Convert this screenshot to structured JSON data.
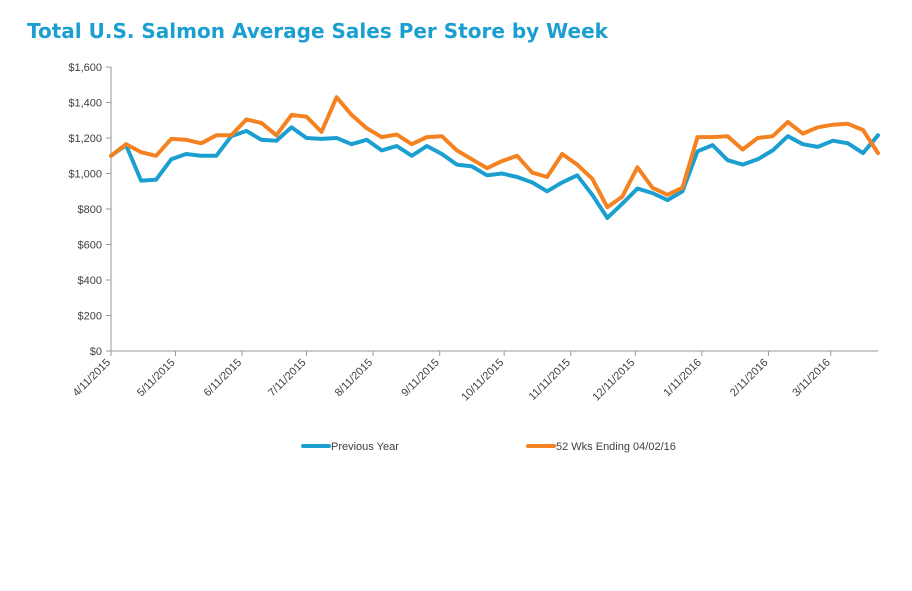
{
  "chart_data": {
    "type": "line",
    "title": "Total U.S. Salmon Average Sales Per Store by Week",
    "xlabel": "",
    "ylabel": "",
    "ylim": [
      0,
      1600
    ],
    "y_ticks": [
      0,
      200,
      400,
      600,
      800,
      1000,
      1200,
      1400,
      1600
    ],
    "y_tick_labels": [
      "$0",
      "$200",
      "$400",
      "$600",
      "$800",
      "$1,000",
      "$1,200",
      "$1,400",
      "$1,600"
    ],
    "x_start": "4/11/2015",
    "x_tick_labels": [
      "4/11/2015",
      "5/11/2015",
      "6/11/2015",
      "7/11/2015",
      "8/11/2015",
      "9/11/2015",
      "10/11/2015",
      "11/11/2015",
      "12/11/2015",
      "1/11/2016",
      "2/11/2016",
      "3/11/2016"
    ],
    "x_tick_dates": [
      "2015-04-11",
      "2015-05-11",
      "2015-06-11",
      "2015-07-11",
      "2015-08-11",
      "2015-09-11",
      "2015-10-11",
      "2015-11-11",
      "2015-12-11",
      "2016-01-11",
      "2016-02-11",
      "2016-03-11"
    ],
    "x_dates": [
      "2015-04-11",
      "2015-04-18",
      "2015-04-25",
      "2015-05-02",
      "2015-05-09",
      "2015-05-16",
      "2015-05-23",
      "2015-05-30",
      "2015-06-06",
      "2015-06-13",
      "2015-06-20",
      "2015-06-27",
      "2015-07-04",
      "2015-07-11",
      "2015-07-18",
      "2015-07-25",
      "2015-08-01",
      "2015-08-08",
      "2015-08-15",
      "2015-08-22",
      "2015-08-29",
      "2015-09-05",
      "2015-09-12",
      "2015-09-19",
      "2015-09-26",
      "2015-10-03",
      "2015-10-10",
      "2015-10-17",
      "2015-10-24",
      "2015-10-31",
      "2015-11-07",
      "2015-11-14",
      "2015-11-21",
      "2015-11-28",
      "2015-12-05",
      "2015-12-12",
      "2015-12-19",
      "2015-12-26",
      "2016-01-02",
      "2016-01-09",
      "2016-01-16",
      "2016-01-23",
      "2016-01-30",
      "2016-02-06",
      "2016-02-13",
      "2016-02-20",
      "2016-02-27",
      "2016-03-05",
      "2016-03-12",
      "2016-03-19",
      "2016-03-26",
      "2016-04-02"
    ],
    "series": [
      {
        "name": "Previous Year",
        "color": "#1b9fd0",
        "values": [
          1100,
          1160,
          960,
          965,
          1080,
          1110,
          1100,
          1100,
          1210,
          1240,
          1190,
          1185,
          1260,
          1200,
          1195,
          1200,
          1165,
          1190,
          1130,
          1155,
          1100,
          1155,
          1110,
          1050,
          1040,
          990,
          1000,
          980,
          950,
          900,
          950,
          990,
          880,
          750,
          830,
          915,
          890,
          850,
          900,
          1125,
          1160,
          1075,
          1050,
          1080,
          1130,
          1210,
          1165,
          1150,
          1185,
          1170,
          1115,
          1215
        ]
      },
      {
        "name": "52 Wks Ending 04/02/16",
        "color": "#f58220",
        "values": [
          1100,
          1165,
          1120,
          1100,
          1195,
          1190,
          1170,
          1215,
          1215,
          1305,
          1285,
          1215,
          1330,
          1320,
          1235,
          1430,
          1330,
          1255,
          1205,
          1220,
          1165,
          1205,
          1210,
          1130,
          1080,
          1030,
          1070,
          1100,
          1005,
          980,
          1110,
          1050,
          970,
          810,
          870,
          1035,
          920,
          880,
          920,
          1205,
          1205,
          1210,
          1135,
          1200,
          1210,
          1290,
          1225,
          1260,
          1275,
          1280,
          1245,
          1115
        ]
      }
    ],
    "legend_position": "bottom",
    "grid": false
  }
}
